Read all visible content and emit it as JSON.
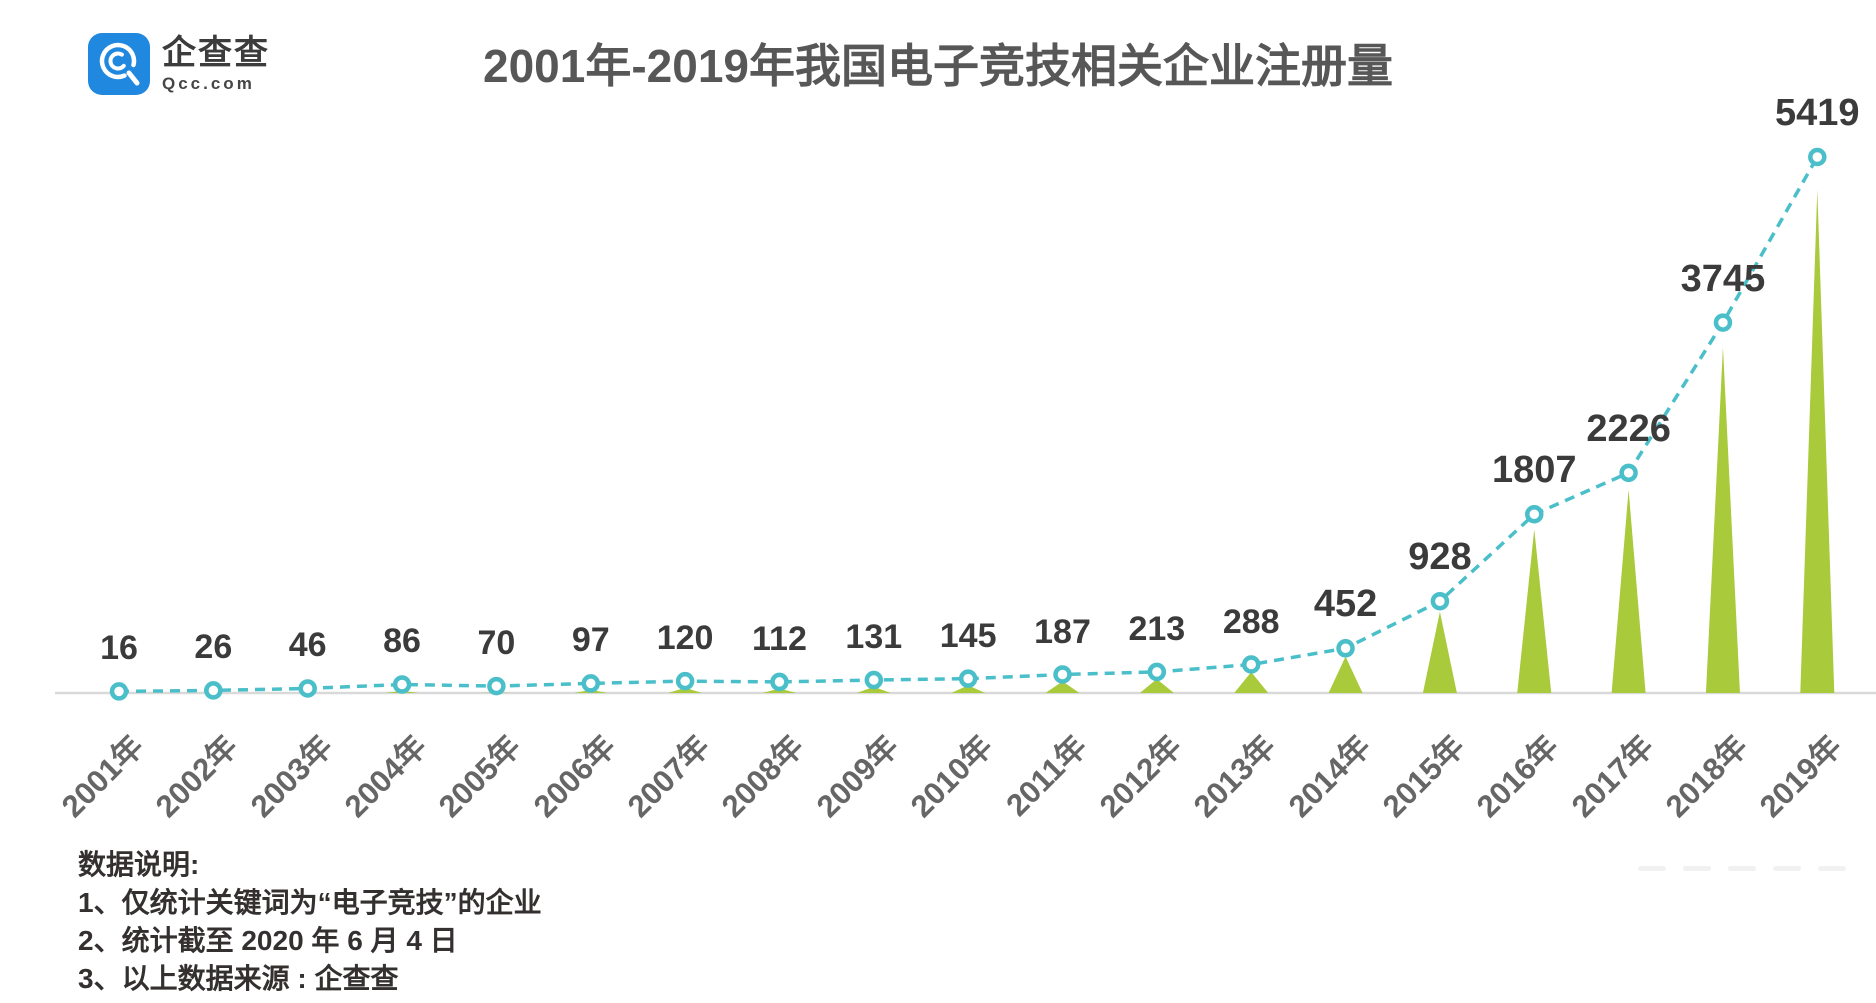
{
  "brand": {
    "name": "企查查",
    "domain": "Qcc.com",
    "logo_color": "#2188e0"
  },
  "title": "2001年-2019年我国电子竞技相关企业注册量",
  "chart_data": {
    "type": "line",
    "subtype": "dashed line with circle markers and triangular area spikes",
    "title": "2001年-2019年我国电子竞技相关企业注册量",
    "categories": [
      "2001年",
      "2002年",
      "2003年",
      "2004年",
      "2005年",
      "2006年",
      "2007年",
      "2008年",
      "2009年",
      "2010年",
      "2011年",
      "2012年",
      "2013年",
      "2014年",
      "2015年",
      "2016年",
      "2017年",
      "2018年",
      "2019年"
    ],
    "values": [
      16,
      26,
      46,
      86,
      70,
      97,
      120,
      112,
      131,
      145,
      187,
      213,
      288,
      452,
      928,
      1807,
      2226,
      3745,
      5419
    ],
    "series_name": "电子竞技相关企业注册量",
    "xlabel": "",
    "ylabel": "",
    "ylim": [
      0,
      5419
    ],
    "grid": false,
    "legend": false,
    "data_labels_shown": true,
    "colors": {
      "line": "#4bbfc9",
      "marker_fill": "#ffffff",
      "marker_stroke": "#4bbfc9",
      "triangle": "#a9ca3a",
      "axis_line": "#d9d9d9",
      "value_label": "#3b3b3b",
      "tick_label": "#666666"
    }
  },
  "notes": {
    "heading": "数据说明:",
    "items": [
      "1、仅统计关键词为“电子竞技”的企业",
      "2、统计截至 2020 年 6 月 4 日",
      "3、以上数据来源 : 企查查"
    ]
  }
}
